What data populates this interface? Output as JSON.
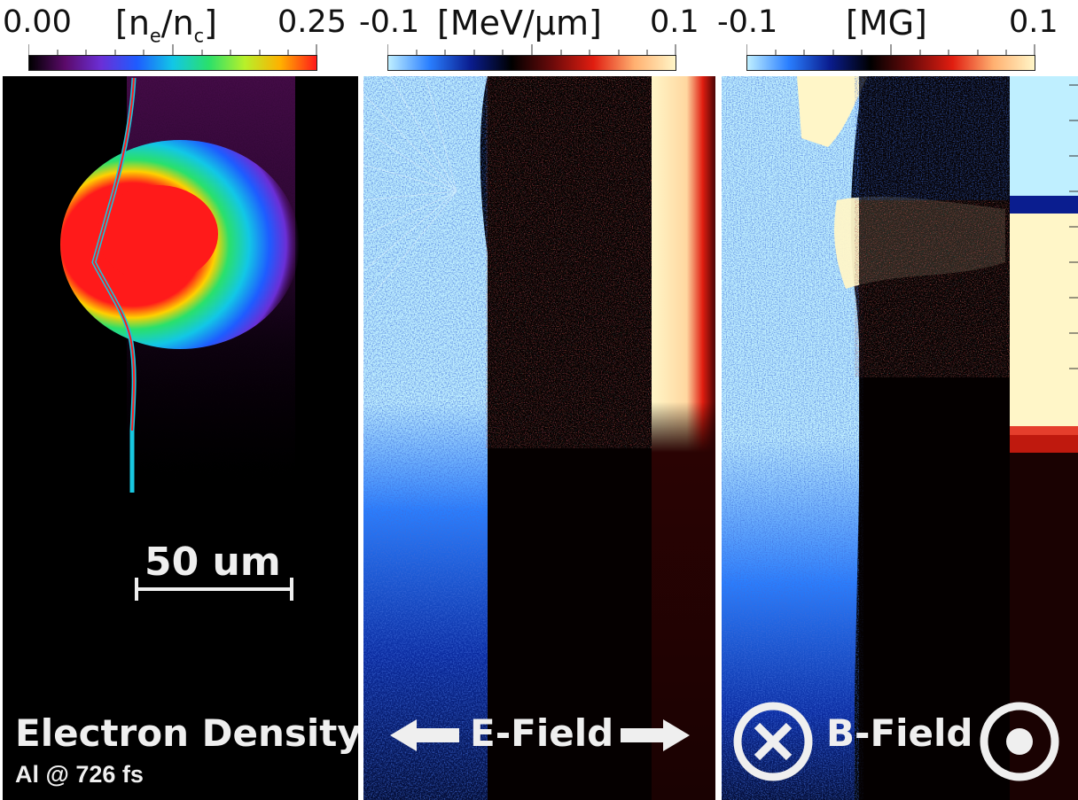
{
  "panels": [
    {
      "colorbar": {
        "min_label": "0.00",
        "unit_prefix": "[n",
        "unit_sub1": "e",
        "unit_mid": "/n",
        "unit_sub2": "c",
        "unit_suffix": "]",
        "max_label": "0.25",
        "colors": [
          "#000000",
          "#5b0a6a",
          "#6b2fd6",
          "#1e5cff",
          "#12c7e6",
          "#2ae06b",
          "#b7f02a",
          "#ffb000",
          "#ff1a1a"
        ]
      },
      "caption": "Electron Density",
      "subcaption": "Al @ 726 fs",
      "scalebar_label": "50 um"
    },
    {
      "colorbar": {
        "min_label": "-0.1",
        "unit": "[MeV/μm]",
        "max_label": "0.1",
        "colors": [
          "#bfefff",
          "#2a7fff",
          "#0a1d8f",
          "#000000",
          "#6b0a0a",
          "#e01d10",
          "#ffb070",
          "#fff6c8"
        ]
      },
      "caption": "E-Field",
      "icons": [
        "arrow-left-icon",
        "arrow-right-icon"
      ]
    },
    {
      "colorbar": {
        "min_label": "-0.1",
        "unit": "[MG]",
        "max_label": "0.1",
        "colors": [
          "#bfefff",
          "#2a7fff",
          "#0a1d8f",
          "#000000",
          "#6b0a0a",
          "#e01d10",
          "#ffb070",
          "#fff6c8"
        ]
      },
      "caption": "B-Field",
      "icons": [
        "into-page-icon",
        "out-of-page-icon"
      ]
    }
  ]
}
